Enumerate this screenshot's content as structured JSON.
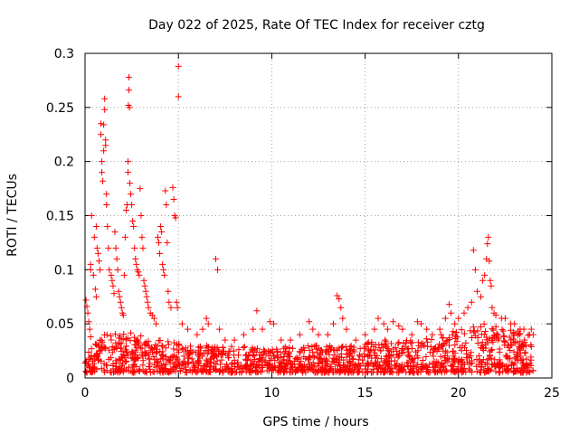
{
  "chart_data": {
    "type": "scatter",
    "title": "Day 022 of 2025, Rate Of TEC Index for receiver cztg",
    "xlabel": "GPS time / hours",
    "ylabel": "ROTI / TECUs",
    "xlim": [
      0,
      25
    ],
    "ylim": [
      0,
      0.3
    ],
    "xticks": [
      "0",
      "5",
      "10",
      "15",
      "20",
      "25"
    ],
    "yticks": [
      "0",
      "0.05",
      "0.1",
      "0.15",
      "0.2",
      "0.25",
      "0.3"
    ],
    "grid": true,
    "marker": "+",
    "series": [
      {
        "name": "ROTI",
        "color": "#ff0000",
        "points": [
          [
            0.05,
            0.072
          ],
          [
            0.1,
            0.066
          ],
          [
            0.15,
            0.06
          ],
          [
            0.2,
            0.052
          ],
          [
            0.25,
            0.045
          ],
          [
            0.3,
            0.038
          ],
          [
            0.3,
            0.1
          ],
          [
            0.3,
            0.105
          ],
          [
            0.35,
            0.15
          ],
          [
            0.45,
            0.095
          ],
          [
            0.55,
            0.082
          ],
          [
            0.6,
            0.075
          ],
          [
            0.5,
            0.13
          ],
          [
            0.6,
            0.14
          ],
          [
            0.65,
            0.12
          ],
          [
            0.7,
            0.115
          ],
          [
            0.75,
            0.108
          ],
          [
            0.8,
            0.1
          ],
          [
            0.85,
            0.235
          ],
          [
            0.85,
            0.225
          ],
          [
            0.9,
            0.2
          ],
          [
            0.9,
            0.19
          ],
          [
            0.95,
            0.182
          ],
          [
            1.0,
            0.21
          ],
          [
            1.05,
            0.258
          ],
          [
            1.05,
            0.248
          ],
          [
            1.0,
            0.234
          ],
          [
            1.1,
            0.22
          ],
          [
            1.1,
            0.215
          ],
          [
            1.15,
            0.17
          ],
          [
            1.15,
            0.16
          ],
          [
            1.2,
            0.14
          ],
          [
            1.25,
            0.12
          ],
          [
            1.3,
            0.1
          ],
          [
            1.4,
            0.095
          ],
          [
            1.45,
            0.09
          ],
          [
            1.5,
            0.085
          ],
          [
            1.55,
            0.078
          ],
          [
            1.6,
            0.135
          ],
          [
            1.65,
            0.12
          ],
          [
            1.7,
            0.11
          ],
          [
            1.75,
            0.1
          ],
          [
            1.8,
            0.08
          ],
          [
            1.85,
            0.075
          ],
          [
            1.9,
            0.07
          ],
          [
            1.95,
            0.065
          ],
          [
            2.0,
            0.06
          ],
          [
            2.05,
            0.058
          ],
          [
            2.1,
            0.095
          ],
          [
            2.15,
            0.13
          ],
          [
            2.2,
            0.155
          ],
          [
            2.25,
            0.16
          ],
          [
            2.3,
            0.19
          ],
          [
            2.3,
            0.2
          ],
          [
            2.32,
            0.252
          ],
          [
            2.35,
            0.266
          ],
          [
            2.35,
            0.278
          ],
          [
            2.38,
            0.25
          ],
          [
            2.4,
            0.18
          ],
          [
            2.45,
            0.17
          ],
          [
            2.5,
            0.16
          ],
          [
            2.55,
            0.145
          ],
          [
            2.6,
            0.14
          ],
          [
            2.65,
            0.12
          ],
          [
            2.7,
            0.11
          ],
          [
            2.75,
            0.105
          ],
          [
            2.8,
            0.1
          ],
          [
            2.85,
            0.098
          ],
          [
            2.9,
            0.095
          ],
          [
            2.95,
            0.175
          ],
          [
            3.0,
            0.15
          ],
          [
            3.05,
            0.13
          ],
          [
            3.1,
            0.12
          ],
          [
            3.15,
            0.09
          ],
          [
            3.2,
            0.085
          ],
          [
            3.25,
            0.08
          ],
          [
            3.3,
            0.075
          ],
          [
            3.35,
            0.07
          ],
          [
            3.4,
            0.065
          ],
          [
            3.5,
            0.06
          ],
          [
            3.6,
            0.058
          ],
          [
            3.7,
            0.055
          ],
          [
            3.8,
            0.05
          ],
          [
            3.9,
            0.13
          ],
          [
            3.95,
            0.125
          ],
          [
            4.0,
            0.115
          ],
          [
            4.05,
            0.14
          ],
          [
            4.1,
            0.135
          ],
          [
            4.15,
            0.105
          ],
          [
            4.2,
            0.1
          ],
          [
            4.25,
            0.095
          ],
          [
            4.3,
            0.173
          ],
          [
            4.35,
            0.16
          ],
          [
            4.4,
            0.125
          ],
          [
            4.45,
            0.08
          ],
          [
            4.5,
            0.07
          ],
          [
            4.6,
            0.065
          ],
          [
            4.7,
            0.176
          ],
          [
            4.75,
            0.165
          ],
          [
            4.8,
            0.15
          ],
          [
            4.85,
            0.148
          ],
          [
            4.9,
            0.07
          ],
          [
            4.95,
            0.065
          ],
          [
            5.0,
            0.288
          ],
          [
            5.0,
            0.26
          ],
          [
            5.2,
            0.05
          ],
          [
            5.5,
            0.045
          ],
          [
            6.0,
            0.04
          ],
          [
            6.3,
            0.045
          ],
          [
            6.5,
            0.055
          ],
          [
            6.6,
            0.05
          ],
          [
            7.0,
            0.11
          ],
          [
            7.1,
            0.1
          ],
          [
            7.2,
            0.045
          ],
          [
            7.5,
            0.035
          ],
          [
            8.0,
            0.035
          ],
          [
            8.5,
            0.04
          ],
          [
            9.0,
            0.045
          ],
          [
            9.2,
            0.062
          ],
          [
            9.5,
            0.045
          ],
          [
            9.9,
            0.052
          ],
          [
            10.1,
            0.05
          ],
          [
            10.5,
            0.035
          ],
          [
            11.0,
            0.035
          ],
          [
            11.5,
            0.04
          ],
          [
            12.0,
            0.052
          ],
          [
            12.2,
            0.045
          ],
          [
            12.5,
            0.04
          ],
          [
            13.0,
            0.04
          ],
          [
            13.3,
            0.05
          ],
          [
            13.5,
            0.076
          ],
          [
            13.6,
            0.073
          ],
          [
            13.7,
            0.065
          ],
          [
            13.8,
            0.055
          ],
          [
            14.0,
            0.045
          ],
          [
            14.5,
            0.035
          ],
          [
            15.0,
            0.04
          ],
          [
            15.5,
            0.045
          ],
          [
            15.7,
            0.055
          ],
          [
            16.0,
            0.05
          ],
          [
            16.2,
            0.045
          ],
          [
            16.5,
            0.052
          ],
          [
            16.8,
            0.048
          ],
          [
            17.0,
            0.045
          ],
          [
            17.5,
            0.04
          ],
          [
            17.8,
            0.052
          ],
          [
            18.0,
            0.05
          ],
          [
            18.3,
            0.045
          ],
          [
            18.6,
            0.04
          ],
          [
            19.0,
            0.045
          ],
          [
            19.3,
            0.055
          ],
          [
            19.5,
            0.068
          ],
          [
            19.6,
            0.06
          ],
          [
            19.8,
            0.05
          ],
          [
            20.0,
            0.055
          ],
          [
            20.3,
            0.06
          ],
          [
            20.5,
            0.065
          ],
          [
            20.7,
            0.07
          ],
          [
            20.8,
            0.118
          ],
          [
            20.9,
            0.1
          ],
          [
            21.0,
            0.08
          ],
          [
            21.2,
            0.075
          ],
          [
            21.3,
            0.09
          ],
          [
            21.4,
            0.095
          ],
          [
            21.5,
            0.11
          ],
          [
            21.55,
            0.124
          ],
          [
            21.6,
            0.13
          ],
          [
            21.65,
            0.108
          ],
          [
            21.7,
            0.09
          ],
          [
            21.75,
            0.085
          ],
          [
            21.8,
            0.065
          ],
          [
            21.9,
            0.06
          ],
          [
            22.0,
            0.058
          ],
          [
            22.3,
            0.055
          ],
          [
            22.5,
            0.055
          ],
          [
            22.8,
            0.05
          ],
          [
            23.0,
            0.05
          ],
          [
            23.3,
            0.045
          ],
          [
            23.5,
            0.045
          ],
          [
            23.8,
            0.04
          ],
          [
            23.9,
            0.045
          ],
          [
            24.0,
            0.04
          ]
        ]
      }
    ],
    "baseline_band": {
      "name": "dense-baseline-cloud",
      "x_range": [
        0,
        24
      ],
      "y_min": 0.005,
      "y_max_profile": [
        [
          0,
          0.035
        ],
        [
          2,
          0.045
        ],
        [
          4,
          0.035
        ],
        [
          6,
          0.03
        ],
        [
          8,
          0.03
        ],
        [
          10,
          0.028
        ],
        [
          12,
          0.03
        ],
        [
          14,
          0.03
        ],
        [
          16,
          0.035
        ],
        [
          18,
          0.035
        ],
        [
          19,
          0.04
        ],
        [
          20,
          0.045
        ],
        [
          21,
          0.05
        ],
        [
          22,
          0.05
        ],
        [
          23,
          0.045
        ],
        [
          24,
          0.04
        ]
      ],
      "count": 1500
    }
  }
}
